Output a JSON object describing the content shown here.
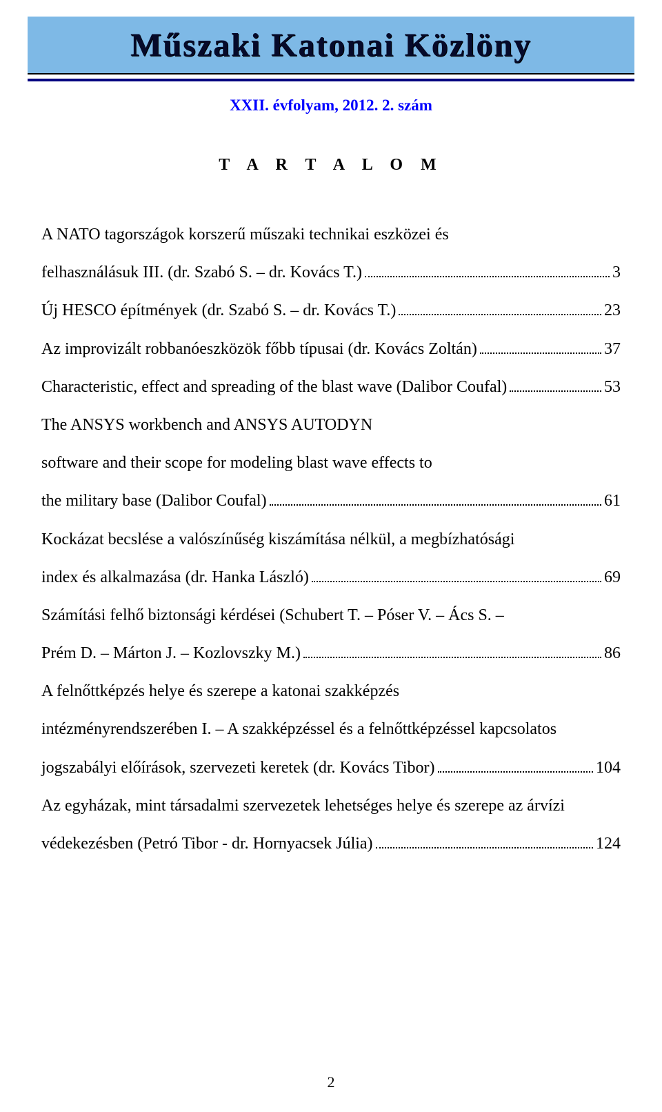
{
  "header": {
    "journal_title": "Műszaki Katonai Közlöny",
    "band_color": "#7eb9e6",
    "title_color": "#060a2a",
    "rule_color": "#000080"
  },
  "issue": {
    "text": "XXII. évfolyam, 2012. 2. szám",
    "color": "#0000ff"
  },
  "section_title": "T A R T A L O M",
  "toc": [
    {
      "lines": [
        "A NATO tagországok korszerű műszaki technikai eszközei és"
      ],
      "last": "felhasználásuk III. (dr. Szabó S. – dr. Kovács T.)",
      "page": "3"
    },
    {
      "lines": [],
      "last": "Új HESCO építmények (dr. Szabó S. – dr. Kovács T.)",
      "page": "23"
    },
    {
      "lines": [],
      "last": "Az improvizált robbanóeszközök főbb típusai (dr. Kovács Zoltán)",
      "page": "37"
    },
    {
      "lines": [],
      "last": "Characteristic, effect and spreading of the blast wave (Dalibor Coufal)",
      "page": "53"
    },
    {
      "lines": [
        "The ANSYS workbench and ANSYS AUTODYN",
        "software and their scope for modeling blast wave effects to"
      ],
      "last": "the military base (Dalibor Coufal)",
      "page": "61"
    },
    {
      "lines": [
        "Kockázat becslése a valószínűség kiszámítása nélkül, a megbízhatósági"
      ],
      "last": "index és alkalmazása (dr. Hanka László)",
      "page": "69"
    },
    {
      "lines": [
        "Számítási felhő biztonsági kérdései (Schubert T. – Póser V. – Ács S. –"
      ],
      "last": "Prém D. – Márton J. – Kozlovszky M.)",
      "page": "86"
    },
    {
      "lines": [
        "A felnőttképzés helye és szerepe a katonai szakképzés",
        "intézményrendszerében I. – A szakképzéssel és a felnőttképzéssel kapcsolatos"
      ],
      "last": "jogszabályi előírások, szervezeti keretek (dr. Kovács Tibor)",
      "page": "104"
    },
    {
      "lines": [
        "Az egyházak, mint társadalmi szervezetek lehetséges helye és szerepe az árvízi"
      ],
      "last": "védekezésben (Petró Tibor - dr. Hornyacsek Júlia)",
      "page": "124"
    }
  ],
  "page_number": "2",
  "typography": {
    "body_font": "Times New Roman",
    "header_font": "Brush Script / decorative",
    "body_fontsize_pt": 18,
    "line_height": 2.3
  },
  "colors": {
    "background": "#ffffff",
    "text": "#000000"
  }
}
